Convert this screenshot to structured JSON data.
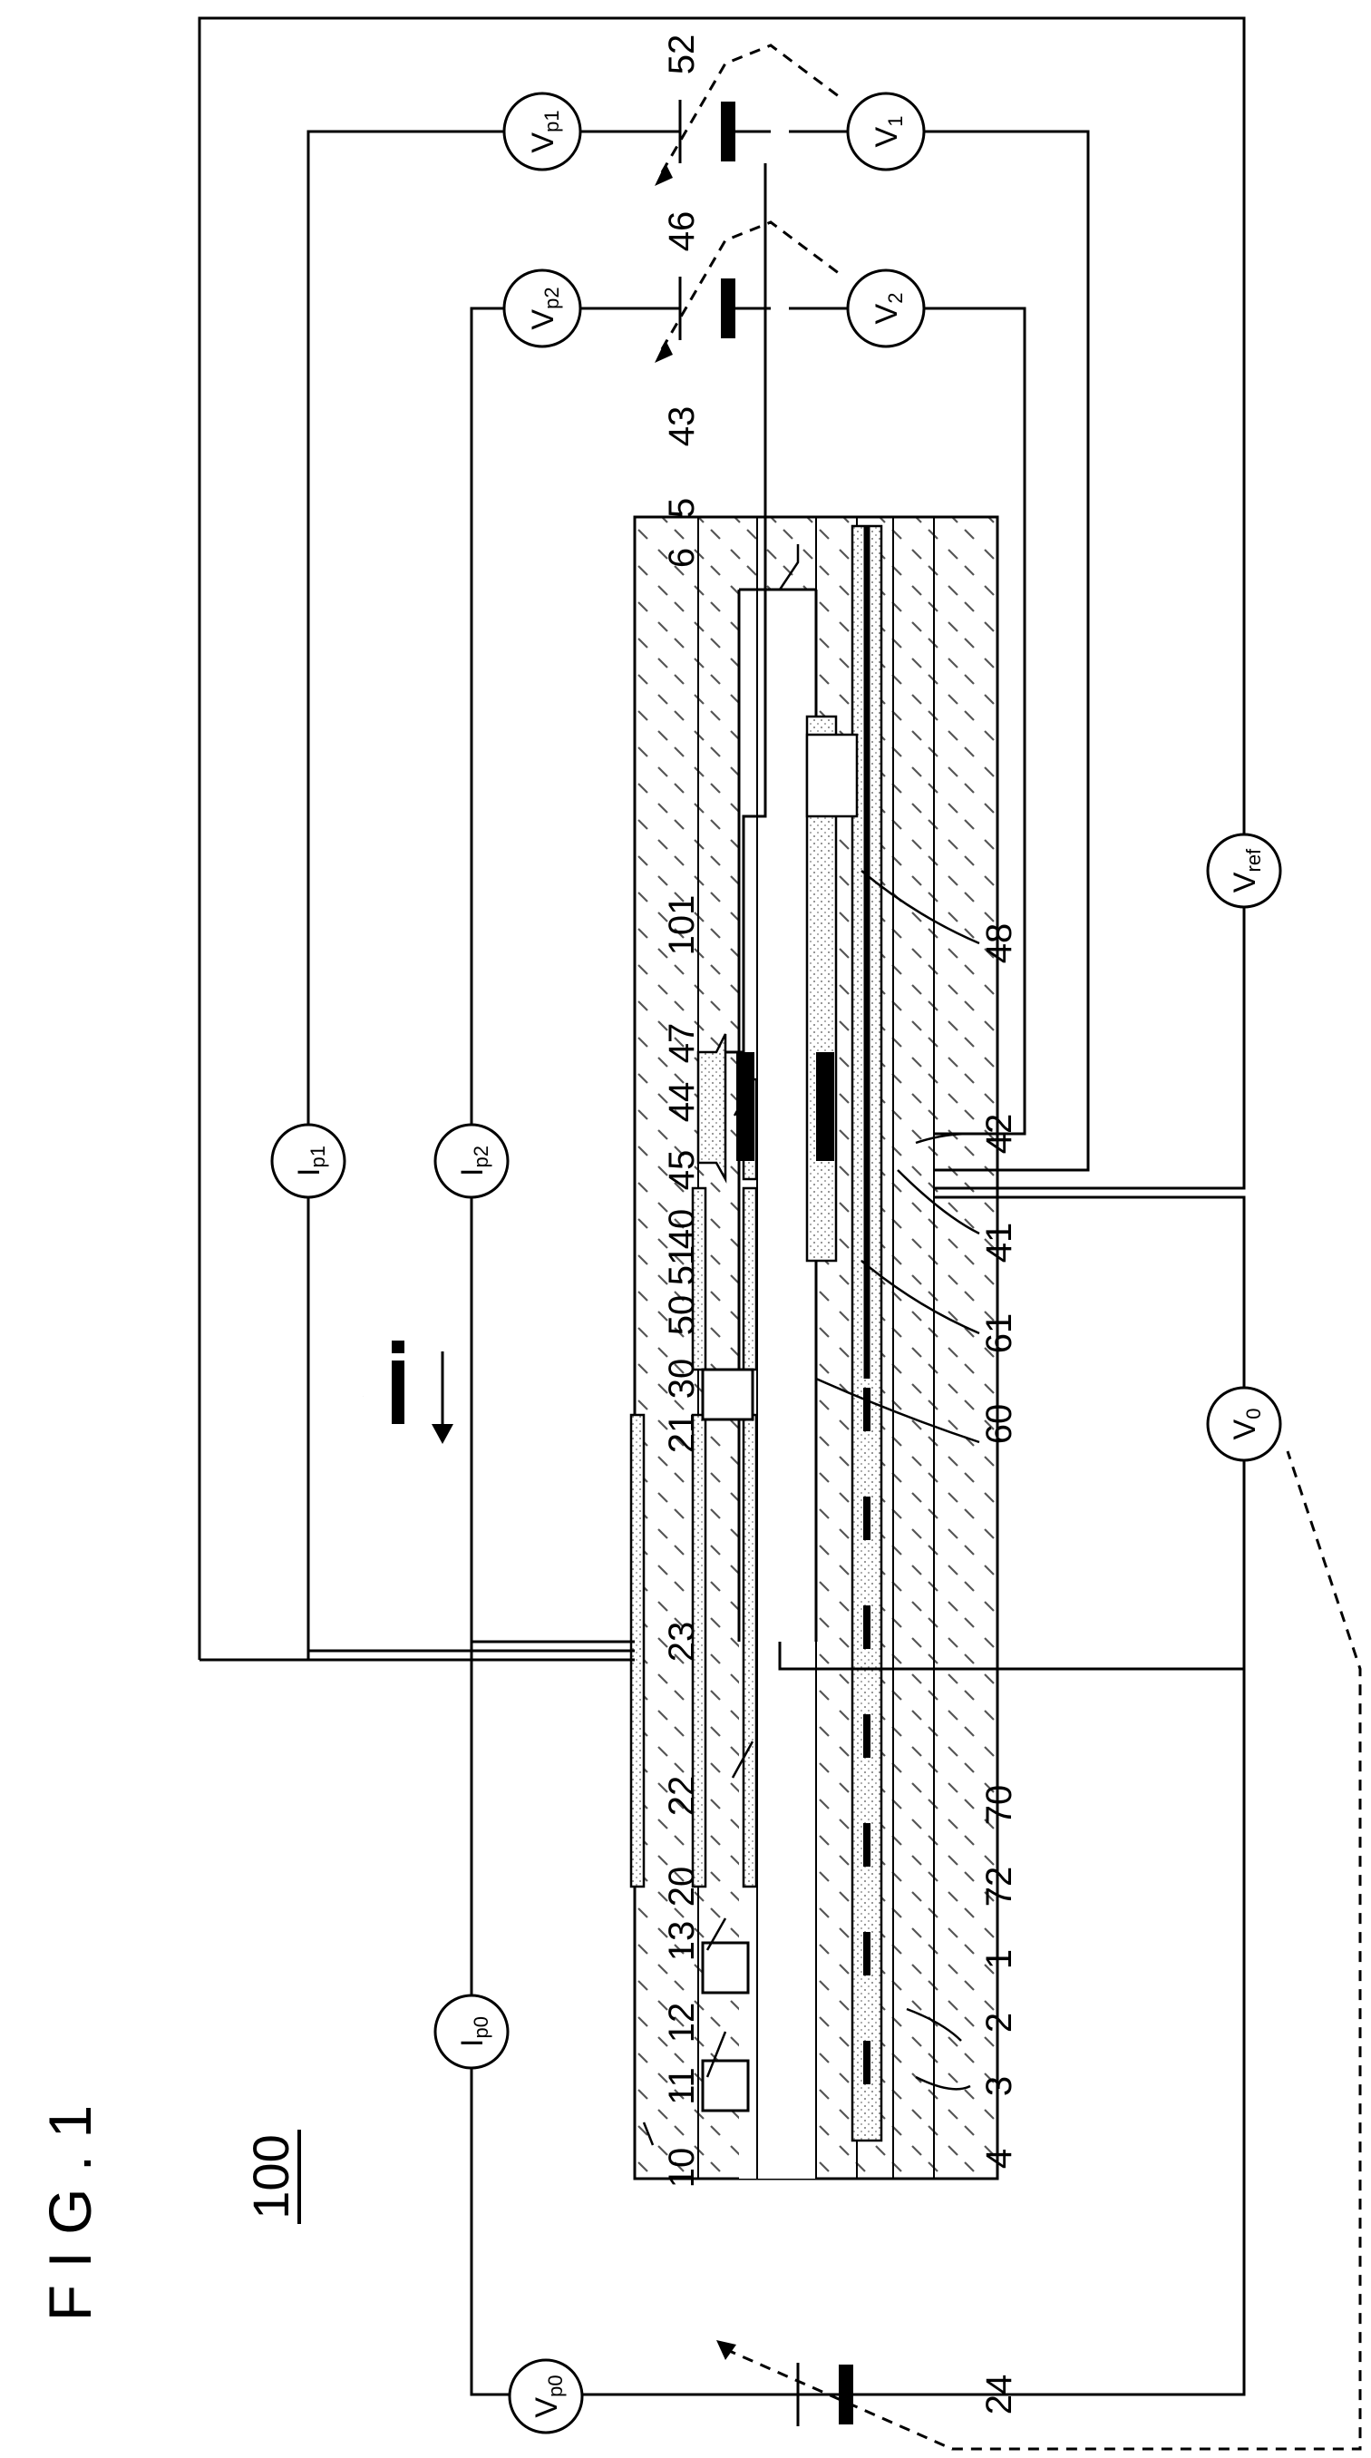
{
  "figure": {
    "title": "F I G . 1",
    "ref": "100"
  },
  "meters": {
    "vp0": [
      "V",
      "p0"
    ],
    "ip0": [
      "I",
      "p0"
    ],
    "ip1": [
      "I",
      "p1"
    ],
    "ip2": [
      "I",
      "p2"
    ],
    "v0": [
      "V",
      "0"
    ],
    "vref": [
      "V",
      "ref"
    ],
    "vp1": [
      "V",
      "p1"
    ],
    "vp2": [
      "V",
      "p2"
    ],
    "v1": [
      "V",
      "1"
    ],
    "v2": [
      "V",
      "2"
    ]
  },
  "flow_marker": "i",
  "labels": {
    "l1": "1",
    "l2": "2",
    "l3": "3",
    "l4": "4",
    "l5": "5",
    "l6": "6",
    "l10": "10",
    "l11": "11",
    "l12": "12",
    "l13": "13",
    "l20": "20",
    "l21": "21",
    "l22": "22",
    "l23": "23",
    "l24": "24",
    "l30": "30",
    "l40": "40",
    "l41": "41",
    "l42": "42",
    "l43": "43",
    "l44": "44",
    "l45": "45",
    "l46": "46",
    "l47": "47",
    "l48": "48",
    "l50": "50",
    "l51": "51",
    "l52": "52",
    "l60": "60",
    "l61": "61",
    "l70": "70",
    "l72": "72",
    "l101": "101"
  }
}
